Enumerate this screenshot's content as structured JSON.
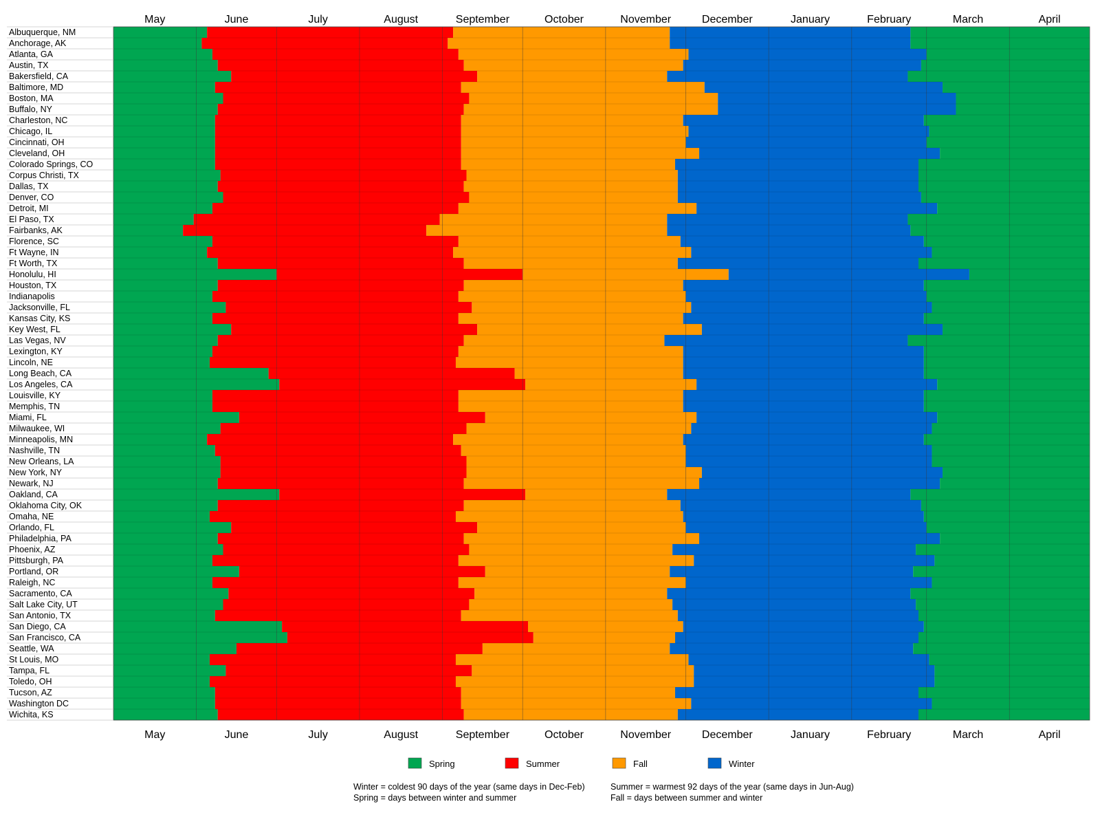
{
  "chart_data": {
    "type": "bar",
    "orientation": "horizontal-stacked-timeline",
    "months": [
      "May",
      "June",
      "July",
      "August",
      "September",
      "October",
      "November",
      "December",
      "January",
      "February",
      "March",
      "April"
    ],
    "season_order": [
      "Spring",
      "Summer",
      "Fall",
      "Winter",
      "Spring"
    ],
    "legend": [
      {
        "name": "Spring",
        "color": "#00a651"
      },
      {
        "name": "Summer",
        "color": "#ff0000"
      },
      {
        "name": "Fall",
        "color": "#ff9900"
      },
      {
        "name": "Winter",
        "color": "#0066cc"
      }
    ],
    "cities": [
      {
        "name": "Albuquerque, NM",
        "summer_start": "Jun 5",
        "fall_start": "Sep 5",
        "winter_start": "Nov 25",
        "spring_start": "Feb 23"
      },
      {
        "name": "Anchorage, AK",
        "summer_start": "Jun 3",
        "fall_start": "Sep 3",
        "winter_start": "Nov 25",
        "spring_start": "Feb 23"
      },
      {
        "name": "Atlanta, GA",
        "summer_start": "Jun 7",
        "fall_start": "Sep 7",
        "winter_start": "Dec 2",
        "spring_start": "Mar 1"
      },
      {
        "name": "Austin, TX",
        "summer_start": "Jun 9",
        "fall_start": "Sep 9",
        "winter_start": "Nov 30",
        "spring_start": "Feb 27"
      },
      {
        "name": "Bakersfield, CA",
        "summer_start": "Jun 14",
        "fall_start": "Sep 14",
        "winter_start": "Nov 24",
        "spring_start": "Feb 22"
      },
      {
        "name": "Baltimore, MD",
        "summer_start": "Jun 8",
        "fall_start": "Sep 8",
        "winter_start": "Dec 8",
        "spring_start": "Mar 7"
      },
      {
        "name": "Boston, MA",
        "summer_start": "Jun 11",
        "fall_start": "Sep 11",
        "winter_start": "Dec 13",
        "spring_start": "Mar 12"
      },
      {
        "name": "Buffalo, NY",
        "summer_start": "Jun 9",
        "fall_start": "Sep 9",
        "winter_start": "Dec 13",
        "spring_start": "Mar 12"
      },
      {
        "name": "Charleston, NC",
        "summer_start": "Jun 8",
        "fall_start": "Sep 8",
        "winter_start": "Dec 0",
        "spring_start": "Mar 0"
      },
      {
        "name": "Chicago, IL",
        "summer_start": "Jun 8",
        "fall_start": "Sep 8",
        "winter_start": "Dec 2",
        "spring_start": "Mar 2"
      },
      {
        "name": "Cincinnati, OH",
        "summer_start": "Jun 8",
        "fall_start": "Sep 8",
        "winter_start": "Dec 1",
        "spring_start": "Mar 1"
      },
      {
        "name": "Cleveland, OH",
        "summer_start": "Jun 8",
        "fall_start": "Sep 8",
        "winter_start": "Dec 6",
        "spring_start": "Mar 6"
      },
      {
        "name": "Colorado Springs, CO",
        "summer_start": "Jun 8",
        "fall_start": "Sep 8",
        "winter_start": "Nov 27",
        "spring_start": "Feb 26"
      },
      {
        "name": "Corpus Christi, TX",
        "summer_start": "Jun 10",
        "fall_start": "Sep 10",
        "winter_start": "Nov 28",
        "spring_start": "Feb 26"
      },
      {
        "name": "Dallas, TX",
        "summer_start": "Jun 9",
        "fall_start": "Sep 9",
        "winter_start": "Nov 28",
        "spring_start": "Feb 26"
      },
      {
        "name": "Denver, CO",
        "summer_start": "Jun 11",
        "fall_start": "Sep 11",
        "winter_start": "Nov 28",
        "spring_start": "Feb 27"
      },
      {
        "name": "Detroit, MI",
        "summer_start": "Jun 7",
        "fall_start": "Sep 7",
        "winter_start": "Dec 5",
        "spring_start": "Mar 5"
      },
      {
        "name": "El Paso, TX",
        "summer_start": "Jun 0",
        "fall_start": "Sep 0",
        "winter_start": "Nov 24",
        "spring_start": "Feb 22"
      },
      {
        "name": "Fairbanks, AK",
        "summer_start": "May 27",
        "fall_start": "Aug 26",
        "winter_start": "Nov 24",
        "spring_start": "Feb 23"
      },
      {
        "name": "Florence, SC",
        "summer_start": "Jun 7",
        "fall_start": "Sep 7",
        "winter_start": "Nov 29",
        "spring_start": "Feb 28"
      },
      {
        "name": "Ft Wayne, IN",
        "summer_start": "Jun 5",
        "fall_start": "Sep 5",
        "winter_start": "Dec 3",
        "spring_start": "Mar 3"
      },
      {
        "name": "Ft Worth, TX",
        "summer_start": "Jun 9",
        "fall_start": "Sep 9",
        "winter_start": "Nov 28",
        "spring_start": "Feb 26"
      },
      {
        "name": "Honolulu, HI",
        "summer_start": "Jun 31",
        "fall_start": "Sep 31",
        "winter_start": "Dec 17",
        "spring_start": "Mar 17"
      },
      {
        "name": "Houston, TX",
        "summer_start": "Jun 9",
        "fall_start": "Sep 9",
        "winter_start": "Nov 30",
        "spring_start": "Feb 28"
      },
      {
        "name": "Indianapolis",
        "summer_start": "Jun 7",
        "fall_start": "Sep 7",
        "winter_start": "Dec 1",
        "spring_start": "Mar 1"
      },
      {
        "name": "Jacksonville, FL",
        "summer_start": "Jun 12",
        "fall_start": "Sep 12",
        "winter_start": "Dec 3",
        "spring_start": "Mar 3"
      },
      {
        "name": "Kansas City, KS",
        "summer_start": "Jun 7",
        "fall_start": "Sep 7",
        "winter_start": "Nov 30",
        "spring_start": "Feb 28"
      },
      {
        "name": "Key West, FL",
        "summer_start": "Jun 14",
        "fall_start": "Sep 14",
        "winter_start": "Dec 7",
        "spring_start": "Mar 7"
      },
      {
        "name": "Las Vegas, NV",
        "summer_start": "Jun 9",
        "fall_start": "Sep 9",
        "winter_start": "Nov 23",
        "spring_start": "Feb 22"
      },
      {
        "name": "Lexington, KY",
        "summer_start": "Jun 7",
        "fall_start": "Sep 7",
        "winter_start": "Dec 0",
        "spring_start": "Mar 0"
      },
      {
        "name": "Lincoln, NE",
        "summer_start": "Jun 6",
        "fall_start": "Sep 6",
        "winter_start": "Nov 30",
        "spring_start": "Feb 28"
      },
      {
        "name": "Long Beach, CA",
        "summer_start": "Jun 28",
        "fall_start": "Sep 28",
        "winter_start": "Dec 0",
        "spring_start": "Mar 0"
      },
      {
        "name": "Los Angeles, CA",
        "summer_start": "Jun 32",
        "fall_start": "Sep 32",
        "winter_start": "Dec 5",
        "spring_start": "Mar 5"
      },
      {
        "name": "Louisville, KY",
        "summer_start": "Jun 7",
        "fall_start": "Sep 7",
        "winter_start": "Nov 30",
        "spring_start": "Feb 28"
      },
      {
        "name": "Memphis, TN",
        "summer_start": "Jun 7",
        "fall_start": "Sep 7",
        "winter_start": "Nov 30",
        "spring_start": "Feb 28"
      },
      {
        "name": "Miami, FL",
        "summer_start": "Jun 17",
        "fall_start": "Sep 17",
        "winter_start": "Dec 5",
        "spring_start": "Mar 5"
      },
      {
        "name": "Milwaukee, WI",
        "summer_start": "Jun 10",
        "fall_start": "Sep 10",
        "winter_start": "Dec 3",
        "spring_start": "Mar 3"
      },
      {
        "name": "Minneapolis, MN",
        "summer_start": "Jun 5",
        "fall_start": "Sep 5",
        "winter_start": "Dec 0",
        "spring_start": "Mar 0"
      },
      {
        "name": "Nashville, TN",
        "summer_start": "Jun 8",
        "fall_start": "Sep 8",
        "winter_start": "Nov 31",
        "spring_start": "Feb 31"
      },
      {
        "name": "New Orleans, LA",
        "summer_start": "Jun 10",
        "fall_start": "Sep 10",
        "winter_start": "Nov 31",
        "spring_start": "Feb 31"
      },
      {
        "name": "New York, NY",
        "summer_start": "Jun 10",
        "fall_start": "Sep 10",
        "winter_start": "Dec 7",
        "spring_start": "Mar 7"
      },
      {
        "name": "Newark, NJ",
        "summer_start": "Jun 9",
        "fall_start": "Sep 9",
        "winter_start": "Dec 6",
        "spring_start": "Mar 6"
      },
      {
        "name": "Oakland, CA",
        "summer_start": "Jun 32",
        "fall_start": "Sep 32",
        "winter_start": "Nov 24",
        "spring_start": "Feb 23"
      },
      {
        "name": "Oklahoma City, OK",
        "summer_start": "Jun 9",
        "fall_start": "Sep 9",
        "winter_start": "Nov 29",
        "spring_start": "Feb 27"
      },
      {
        "name": "Omaha, NE",
        "summer_start": "Jun 6",
        "fall_start": "Sep 6",
        "winter_start": "Nov 30",
        "spring_start": "Feb 28"
      },
      {
        "name": "Orlando, FL",
        "summer_start": "Jun 14",
        "fall_start": "Sep 14",
        "winter_start": "Dec 1",
        "spring_start": "Mar 1"
      },
      {
        "name": "Philadelphia, PA",
        "summer_start": "Jun 9",
        "fall_start": "Sep 9",
        "winter_start": "Dec 6",
        "spring_start": "Mar 6"
      },
      {
        "name": "Phoenix, AZ",
        "summer_start": "Jun 11",
        "fall_start": "Sep 11",
        "winter_start": "Nov 26",
        "spring_start": "Feb 25"
      },
      {
        "name": "Pittsburgh, PA",
        "summer_start": "Jun 7",
        "fall_start": "Sep 7",
        "winter_start": "Dec 4",
        "spring_start": "Mar 4"
      },
      {
        "name": "Portland, OR",
        "summer_start": "Jun 17",
        "fall_start": "Sep 17",
        "winter_start": "Nov 25",
        "spring_start": "Feb 24"
      },
      {
        "name": "Raleigh, NC",
        "summer_start": "Jun 7",
        "fall_start": "Sep 7",
        "winter_start": "Nov 31",
        "spring_start": "Feb 31"
      },
      {
        "name": "Sacramento, CA",
        "summer_start": "Jun 13",
        "fall_start": "Sep 13",
        "winter_start": "Nov 24",
        "spring_start": "Feb 23"
      },
      {
        "name": "Salt Lake City, UT",
        "summer_start": "Jun 11",
        "fall_start": "Sep 11",
        "winter_start": "Nov 26",
        "spring_start": "Feb 25"
      },
      {
        "name": "San Antonio, TX",
        "summer_start": "Jun 8",
        "fall_start": "Sep 8",
        "winter_start": "Nov 28",
        "spring_start": "Feb 26"
      },
      {
        "name": "San Diego, CA",
        "summer_start": "Jun 33",
        "fall_start": "Sep 33",
        "winter_start": "Dec 0",
        "spring_start": "Mar 0"
      },
      {
        "name": "San Francisco, CA",
        "summer_start": "Jun 35",
        "fall_start": "Sep 35",
        "winter_start": "Nov 27",
        "spring_start": "Feb 26"
      },
      {
        "name": "Seattle, WA",
        "summer_start": "Jun 16",
        "fall_start": "Sep 16",
        "winter_start": "Nov 25",
        "spring_start": "Feb 24"
      },
      {
        "name": "St Louis, MO",
        "summer_start": "Jun 6",
        "fall_start": "Sep 6",
        "winter_start": "Dec 2",
        "spring_start": "Mar 2"
      },
      {
        "name": "Tampa, FL",
        "summer_start": "Jun 12",
        "fall_start": "Sep 12",
        "winter_start": "Dec 4",
        "spring_start": "Mar 4"
      },
      {
        "name": "Toledo, OH",
        "summer_start": "Jun 6",
        "fall_start": "Sep 6",
        "winter_start": "Dec 4",
        "spring_start": "Mar 4"
      },
      {
        "name": "Tucson, AZ",
        "summer_start": "Jun 8",
        "fall_start": "Sep 8",
        "winter_start": "Nov 27",
        "spring_start": "Feb 26"
      },
      {
        "name": "Washington DC",
        "summer_start": "Jun 8",
        "fall_start": "Sep 8",
        "winter_start": "Dec 3",
        "spring_start": "Mar 3"
      },
      {
        "name": "Wichita, KS",
        "summer_start": "Jun 9",
        "fall_start": "Sep 9",
        "winter_start": "Nov 28",
        "spring_start": "Feb 26"
      }
    ],
    "notes": [
      "Winter = coldest 90 days of the year (same days in Dec-Feb)",
      "Spring = days between winter and summer",
      "Summer = warmest 92 days of the year (same days in Jun-Aug)",
      "Fall = days between summer and winter"
    ]
  }
}
